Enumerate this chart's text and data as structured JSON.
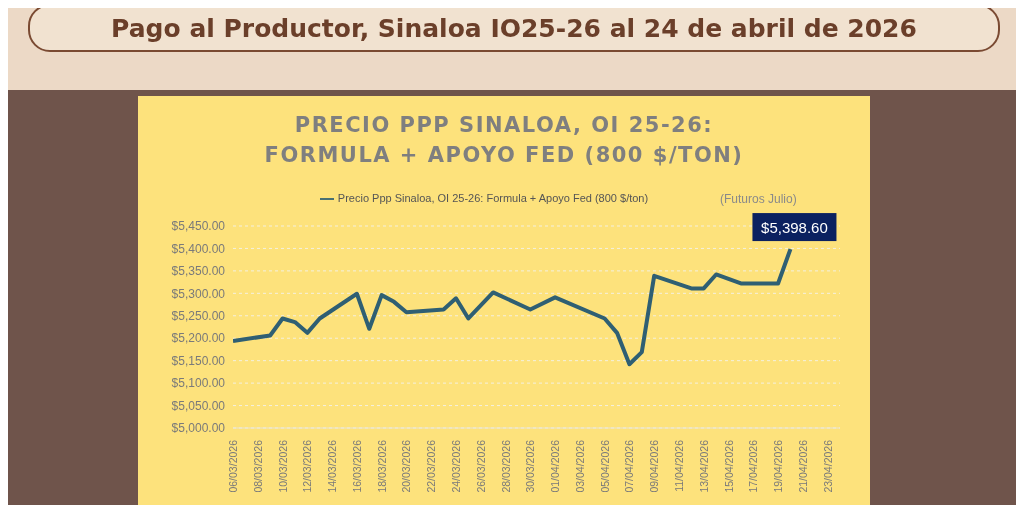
{
  "chart_data": {
    "type": "line",
    "title": "Pago al Productor, Sinaloa IO25-26 al 24 de abril de 2026",
    "subtitle": "PRECIO PPP SINALOA, OI 25-26: FORMULA + APOYO FED (800 $/TON)",
    "annotations": [
      "(Futuros Julio)"
    ],
    "x": [
      "2026-03-06",
      "2026-03-09",
      "2026-03-10",
      "2026-03-11",
      "2026-03-12",
      "2026-03-13",
      "2026-03-16",
      "2026-03-17",
      "2026-03-18",
      "2026-03-19",
      "2026-03-20",
      "2026-03-23",
      "2026-03-24",
      "2026-03-25",
      "2026-03-27",
      "2026-03-30",
      "2026-04-01",
      "2026-04-05",
      "2026-04-06",
      "2026-04-07",
      "2026-04-08",
      "2026-04-09",
      "2026-04-12",
      "2026-04-13",
      "2026-04-14",
      "2026-04-16",
      "2026-04-19",
      "2026-04-20"
    ],
    "series": [
      {
        "name": "Precio Ppp Sinaloa, OI 25-26: Formula + Apoyo Fed (800 $/ton)",
        "color": "#2f5f73",
        "values": [
          5194,
          5206,
          5244,
          5236,
          5212,
          5244,
          5299,
          5221,
          5296,
          5281,
          5258,
          5264,
          5289,
          5244,
          5302,
          5264,
          5291,
          5244,
          5212,
          5142,
          5169,
          5339,
          5311,
          5311,
          5342,
          5322,
          5322,
          5398.6
        ],
        "value_labels": [
          null,
          null,
          null,
          null,
          null,
          null,
          null,
          null,
          null,
          null,
          null,
          null,
          null,
          null,
          null,
          null,
          null,
          null,
          null,
          null,
          null,
          null,
          null,
          null,
          null,
          null,
          null,
          "$5,398.60"
        ]
      }
    ],
    "xlim": [
      "2026-03-06",
      "2026-04-24"
    ],
    "xticks": [
      {
        "value": "2026-03-06",
        "label": "06/03/2026"
      },
      {
        "value": "2026-03-08",
        "label": "08/03/2026"
      },
      {
        "value": "2026-03-10",
        "label": "10/03/2026"
      },
      {
        "value": "2026-03-12",
        "label": "12/03/2026"
      },
      {
        "value": "2026-03-14",
        "label": "14/03/2026"
      },
      {
        "value": "2026-03-16",
        "label": "16/03/2026"
      },
      {
        "value": "2026-03-18",
        "label": "18/03/2026"
      },
      {
        "value": "2026-03-20",
        "label": "20/03/2026"
      },
      {
        "value": "2026-03-22",
        "label": "22/03/2026"
      },
      {
        "value": "2026-03-24",
        "label": "24/03/2026"
      },
      {
        "value": "2026-03-26",
        "label": "26/03/2026"
      },
      {
        "value": "2026-03-28",
        "label": "28/03/2026"
      },
      {
        "value": "2026-03-30",
        "label": "30/03/2026"
      },
      {
        "value": "2026-04-01",
        "label": "01/04/2026"
      },
      {
        "value": "2026-04-03",
        "label": "03/04/2026"
      },
      {
        "value": "2026-04-05",
        "label": "05/04/2026"
      },
      {
        "value": "2026-04-07",
        "label": "07/04/2026"
      },
      {
        "value": "2026-04-09",
        "label": "09/04/2026"
      },
      {
        "value": "2026-04-11",
        "label": "11/04/2026"
      },
      {
        "value": "2026-04-13",
        "label": "13/04/2026"
      },
      {
        "value": "2026-04-15",
        "label": "15/04/2026"
      },
      {
        "value": "2026-04-17",
        "label": "17/04/2026"
      },
      {
        "value": "2026-04-19",
        "label": "19/04/2026"
      },
      {
        "value": "2026-04-21",
        "label": "21/04/2026"
      },
      {
        "value": "2026-04-23",
        "label": "23/04/2026"
      }
    ],
    "ylim": [
      5000,
      5450
    ],
    "yticks": [
      {
        "value": 5000,
        "label": "$5,000.00"
      },
      {
        "value": 5050,
        "label": "$5,050.00"
      },
      {
        "value": 5100,
        "label": "$5,100.00"
      },
      {
        "value": 5150,
        "label": "$5,150.00"
      },
      {
        "value": 5200,
        "label": "$5,200.00"
      },
      {
        "value": 5250,
        "label": "$5,250.00"
      },
      {
        "value": 5300,
        "label": "$5,300.00"
      },
      {
        "value": 5350,
        "label": "$5,350.00"
      },
      {
        "value": 5400,
        "label": "$5,400.00"
      },
      {
        "value": 5450,
        "label": "$5,450.00"
      }
    ],
    "grid": "y",
    "legend": "top",
    "marker": "none",
    "line_style": "solid"
  }
}
